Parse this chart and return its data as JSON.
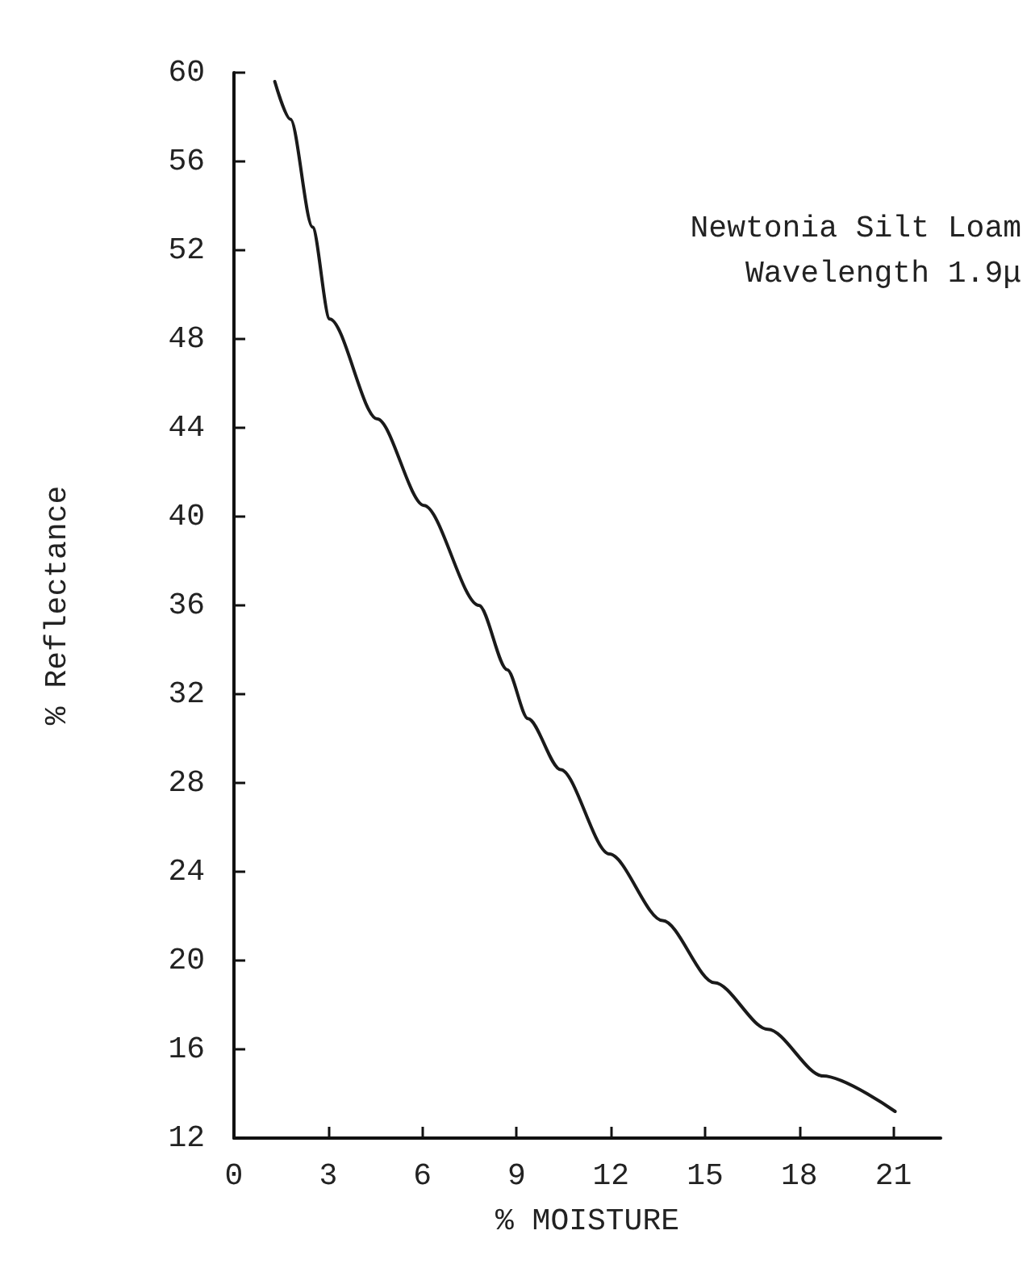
{
  "chart_data": {
    "type": "line",
    "xlabel": "% MOISTURE",
    "ylabel": "% Reflectance",
    "annotations": [
      "Newtonia Silt Loam",
      "Wavelength 1.9μ"
    ],
    "x": [
      1.3,
      1.8,
      2.5,
      3.05,
      4.56,
      6.05,
      7.8,
      8.7,
      9.36,
      10.4,
      11.95,
      13.65,
      15.3,
      17.0,
      18.75,
      21.05
    ],
    "series": [
      {
        "color": "#1a1a1a",
        "values": [
          59.6,
          57.9,
          53.05,
          48.9,
          44.4,
          40.5,
          36,
          33.1,
          30.9,
          28.6,
          24.8,
          21.8,
          19.0,
          16.9,
          14.8,
          13.2
        ]
      }
    ],
    "xlim": [
      0,
      22.5
    ],
    "xticks": [
      0,
      3,
      6,
      9,
      12,
      15,
      18,
      21
    ],
    "ylim": [
      12,
      60
    ],
    "yticks": [
      12,
      16,
      20,
      24,
      28,
      32,
      36,
      40,
      44,
      48,
      52,
      56,
      60
    ],
    "marker": "none",
    "line_style": "solid"
  }
}
